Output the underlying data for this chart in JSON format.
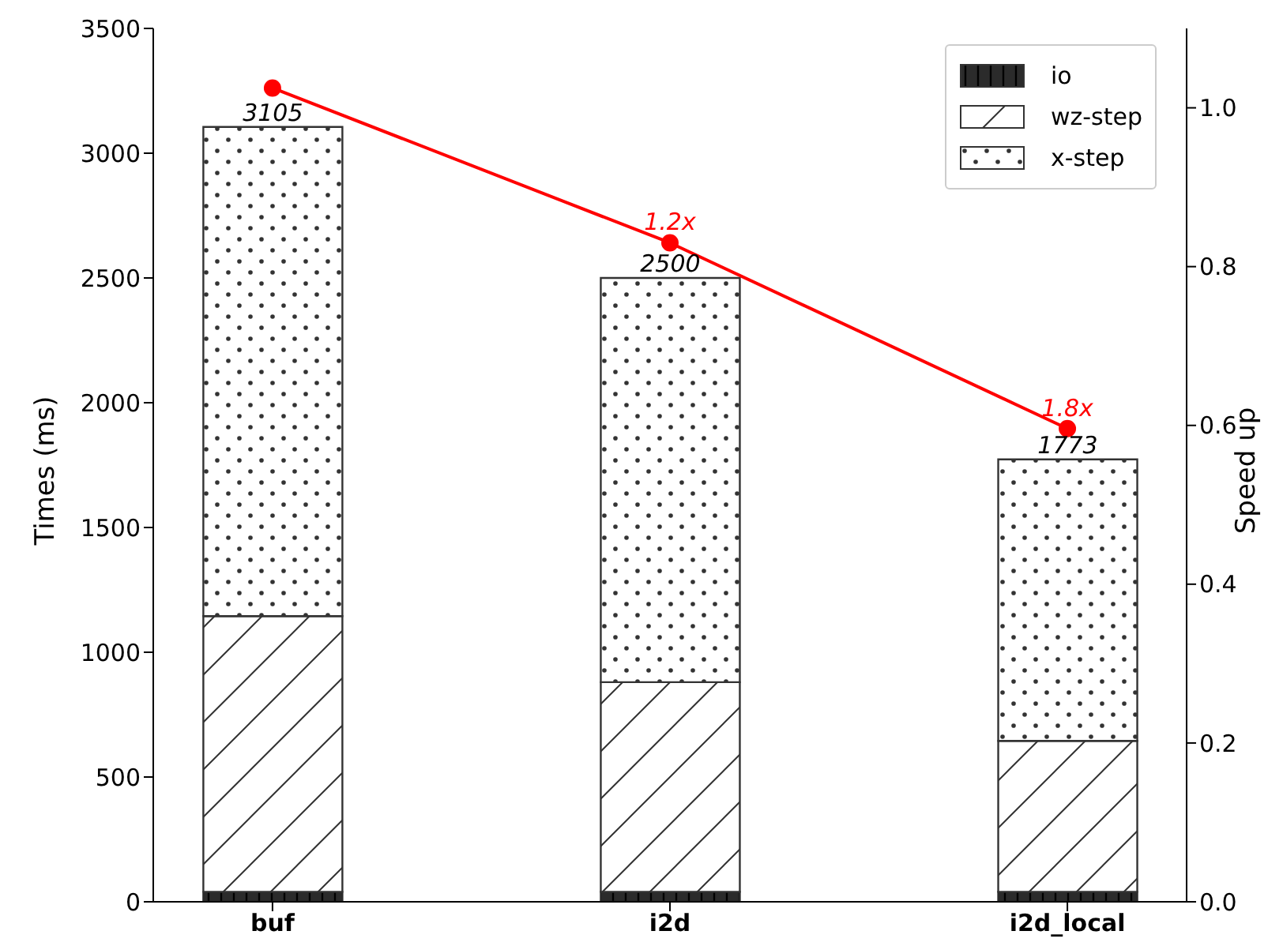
{
  "chart_data": {
    "type": "bar",
    "stacked": true,
    "categories": [
      "buf",
      "i2d",
      "i2d_local"
    ],
    "series": [
      {
        "name": "io",
        "color": "#2b2b2b",
        "values": [
          40,
          40,
          40
        ]
      },
      {
        "name": "wz-step",
        "color": "#333333",
        "values": [
          1105,
          840,
          605
        ]
      },
      {
        "name": "x-step",
        "color": "#333333",
        "values": [
          1960,
          1620,
          1128
        ]
      },
      {
        "type": "line",
        "axis": "y2",
        "color": "#ff0000",
        "marker": "circle",
        "values": [
          1.025,
          0.83,
          0.596
        ]
      }
    ],
    "totals": [
      "3105",
      "2500",
      "1773"
    ],
    "annotations": [
      "1.2x",
      "1.8x"
    ],
    "ylabel": "Times (ms)",
    "y2label": "Speed up",
    "ylim": [
      0,
      3500
    ],
    "yticks": [
      0,
      500,
      1000,
      1500,
      2000,
      2500,
      3000,
      3500
    ],
    "y2lim": [
      0,
      1.1
    ],
    "y2ticks": [
      {
        "value": 0,
        "label": "0.0"
      },
      {
        "value": 0.2,
        "label": "0.2"
      },
      {
        "value": 0.4,
        "label": "0.4"
      },
      {
        "value": 0.6,
        "label": "0.6"
      },
      {
        "value": 0.8,
        "label": "0.8"
      },
      {
        "value": 1,
        "label": "1.0"
      }
    ],
    "grid": false,
    "legend": "top right"
  }
}
